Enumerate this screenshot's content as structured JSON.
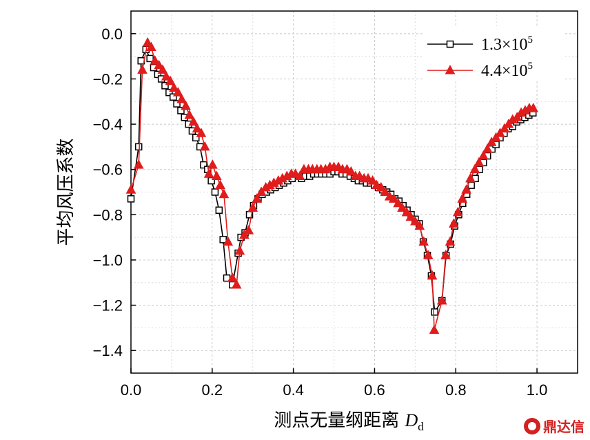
{
  "chart_data": {
    "type": "line",
    "title": "",
    "xlabel": "测点无量纲距离 ",
    "xlabel_symbol": "D",
    "xlabel_subscript": "d",
    "ylabel": "平均风压系数",
    "xlim": [
      0,
      1.1
    ],
    "ylim": [
      -1.5,
      0.1
    ],
    "xticks": [
      0.0,
      0.2,
      0.4,
      0.6,
      0.8,
      1.0
    ],
    "xtick_labels": [
      "0.0",
      "0.2",
      "0.4",
      "0.6",
      "0.8",
      "1.0"
    ],
    "yticks": [
      0.0,
      -0.2,
      -0.4,
      -0.6,
      -0.8,
      -1.0,
      -1.2,
      -1.4
    ],
    "ytick_labels": [
      "0.0",
      "−0.2",
      "−0.4",
      "−0.6",
      "−0.8",
      "−1.0",
      "−1.2",
      "−1.4"
    ],
    "grid": true,
    "legend_position": "top-right",
    "series": [
      {
        "name": "1.3×10",
        "name_exponent": "5",
        "color": "#000000",
        "marker": "square",
        "x": [
          0.0,
          0.019,
          0.025,
          0.037,
          0.047,
          0.056,
          0.066,
          0.075,
          0.084,
          0.094,
          0.104,
          0.113,
          0.123,
          0.132,
          0.142,
          0.151,
          0.16,
          0.17,
          0.179,
          0.189,
          0.198,
          0.207,
          0.217,
          0.227,
          0.236,
          0.25,
          0.264,
          0.271,
          0.281,
          0.292,
          0.302,
          0.313,
          0.323,
          0.334,
          0.344,
          0.355,
          0.365,
          0.376,
          0.386,
          0.397,
          0.42,
          0.43,
          0.44,
          0.45,
          0.46,
          0.47,
          0.48,
          0.49,
          0.5,
          0.51,
          0.52,
          0.53,
          0.54,
          0.55,
          0.56,
          0.57,
          0.58,
          0.59,
          0.6,
          0.61,
          0.62,
          0.63,
          0.64,
          0.65,
          0.66,
          0.67,
          0.68,
          0.69,
          0.7,
          0.71,
          0.72,
          0.73,
          0.74,
          0.748,
          0.766,
          0.776,
          0.787,
          0.797,
          0.807,
          0.817,
          0.827,
          0.838,
          0.848,
          0.858,
          0.868,
          0.878,
          0.889,
          0.899,
          0.909,
          0.919,
          0.929,
          0.94,
          0.95,
          0.96,
          0.97,
          0.98,
          0.99
        ],
        "y": [
          -0.73,
          -0.5,
          -0.12,
          -0.07,
          -0.11,
          -0.15,
          -0.18,
          -0.2,
          -0.23,
          -0.26,
          -0.28,
          -0.31,
          -0.34,
          -0.37,
          -0.4,
          -0.43,
          -0.46,
          -0.5,
          -0.58,
          -0.6,
          -0.65,
          -0.7,
          -0.78,
          -0.91,
          -1.08,
          -1.11,
          -0.97,
          -0.9,
          -0.88,
          -0.8,
          -0.76,
          -0.73,
          -0.71,
          -0.7,
          -0.69,
          -0.68,
          -0.67,
          -0.66,
          -0.65,
          -0.64,
          -0.64,
          -0.63,
          -0.63,
          -0.62,
          -0.62,
          -0.62,
          -0.62,
          -0.62,
          -0.61,
          -0.61,
          -0.62,
          -0.62,
          -0.63,
          -0.64,
          -0.65,
          -0.65,
          -0.66,
          -0.66,
          -0.67,
          -0.68,
          -0.69,
          -0.7,
          -0.71,
          -0.73,
          -0.74,
          -0.76,
          -0.78,
          -0.8,
          -0.82,
          -0.84,
          -0.92,
          -0.98,
          -1.07,
          -1.23,
          -1.18,
          -0.98,
          -0.93,
          -0.85,
          -0.8,
          -0.75,
          -0.71,
          -0.67,
          -0.64,
          -0.6,
          -0.57,
          -0.54,
          -0.51,
          -0.49,
          -0.46,
          -0.44,
          -0.42,
          -0.41,
          -0.39,
          -0.38,
          -0.37,
          -0.36,
          -0.35
        ]
      },
      {
        "name": "4.4×10",
        "name_exponent": "5",
        "color": "#e01c1c",
        "marker": "triangle",
        "x": [
          0.0,
          0.019,
          0.028,
          0.041,
          0.05,
          0.059,
          0.069,
          0.078,
          0.087,
          0.097,
          0.106,
          0.116,
          0.125,
          0.135,
          0.144,
          0.154,
          0.163,
          0.173,
          0.182,
          0.192,
          0.201,
          0.211,
          0.22,
          0.229,
          0.239,
          0.25,
          0.26,
          0.268,
          0.279,
          0.29,
          0.3,
          0.31,
          0.321,
          0.332,
          0.342,
          0.352,
          0.363,
          0.373,
          0.384,
          0.395,
          0.405,
          0.416,
          0.426,
          0.437,
          0.447,
          0.458,
          0.468,
          0.479,
          0.49,
          0.5,
          0.511,
          0.521,
          0.532,
          0.542,
          0.553,
          0.563,
          0.574,
          0.584,
          0.595,
          0.605,
          0.616,
          0.626,
          0.637,
          0.647,
          0.658,
          0.668,
          0.679,
          0.689,
          0.7,
          0.711,
          0.721,
          0.732,
          0.742,
          0.747,
          0.766,
          0.775,
          0.786,
          0.795,
          0.805,
          0.816,
          0.826,
          0.836,
          0.847,
          0.857,
          0.868,
          0.878,
          0.888,
          0.899,
          0.909,
          0.92,
          0.93,
          0.94,
          0.951,
          0.961,
          0.971,
          0.981,
          0.991
        ],
        "y": [
          -0.69,
          -0.58,
          -0.16,
          -0.04,
          -0.06,
          -0.12,
          -0.14,
          -0.16,
          -0.19,
          -0.21,
          -0.24,
          -0.26,
          -0.29,
          -0.32,
          -0.36,
          -0.39,
          -0.42,
          -0.44,
          -0.5,
          -0.62,
          -0.58,
          -0.63,
          -0.67,
          -0.71,
          -0.92,
          -1.08,
          -1.11,
          -0.96,
          -0.89,
          -0.87,
          -0.77,
          -0.73,
          -0.7,
          -0.68,
          -0.67,
          -0.66,
          -0.65,
          -0.64,
          -0.63,
          -0.62,
          -0.62,
          -0.63,
          -0.6,
          -0.6,
          -0.6,
          -0.6,
          -0.6,
          -0.6,
          -0.59,
          -0.59,
          -0.59,
          -0.6,
          -0.6,
          -0.61,
          -0.63,
          -0.63,
          -0.64,
          -0.64,
          -0.65,
          -0.67,
          -0.68,
          -0.7,
          -0.72,
          -0.73,
          -0.75,
          -0.77,
          -0.79,
          -0.81,
          -0.83,
          -0.85,
          -0.92,
          -0.98,
          -1.07,
          -1.31,
          -1.18,
          -0.98,
          -0.92,
          -0.84,
          -0.79,
          -0.73,
          -0.69,
          -0.64,
          -0.6,
          -0.57,
          -0.54,
          -0.51,
          -0.48,
          -0.46,
          -0.44,
          -0.42,
          -0.4,
          -0.38,
          -0.37,
          -0.35,
          -0.34,
          -0.33,
          -0.33
        ]
      }
    ]
  },
  "watermark": {
    "text": "鼎达信"
  }
}
